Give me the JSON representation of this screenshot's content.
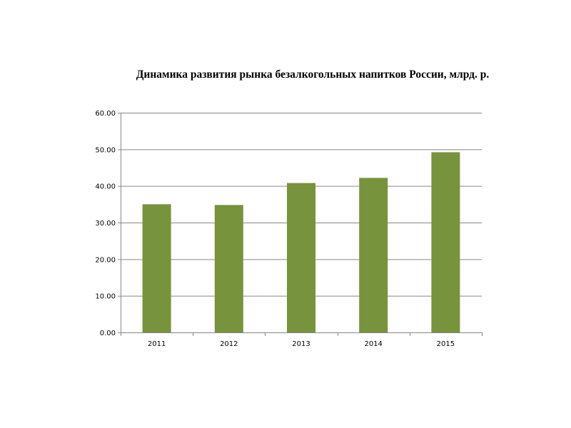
{
  "chart_data": {
    "type": "bar",
    "title": "Динамика развития рынка безалкогольных напитков России, млрд. р.",
    "categories": [
      "2011",
      "2012",
      "2013",
      "2014",
      "2015"
    ],
    "values": [
      35.0,
      34.8,
      40.8,
      42.2,
      49.2
    ],
    "ylim": [
      0,
      60
    ],
    "yticks": [
      0,
      10,
      20,
      30,
      40,
      50,
      60
    ],
    "ytick_labels": [
      "0.00",
      "10.00",
      "20.00",
      "30.00",
      "40.00",
      "50.00",
      "60.00"
    ],
    "xlabel": "",
    "ylabel": "",
    "grid": true,
    "bar_color": "#77933C",
    "grid_color": "#868686"
  }
}
